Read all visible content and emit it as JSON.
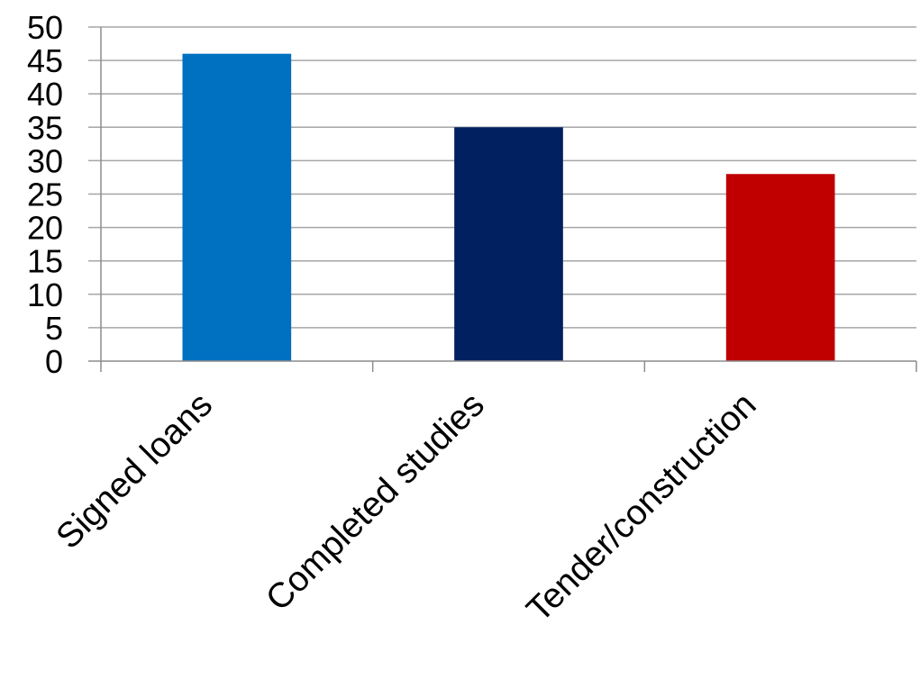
{
  "chart_data": {
    "type": "bar",
    "categories": [
      "Signed loans",
      "Completed studies",
      "Tender/construction"
    ],
    "values": [
      46,
      35,
      28
    ],
    "colors": [
      "#0070c0",
      "#002060",
      "#c00000"
    ],
    "title": "",
    "xlabel": "",
    "ylabel": "",
    "ylim": [
      0,
      50
    ],
    "yticks": [
      0,
      5,
      10,
      15,
      20,
      25,
      30,
      35,
      40,
      45,
      50
    ],
    "grid": true,
    "legend": "none"
  }
}
